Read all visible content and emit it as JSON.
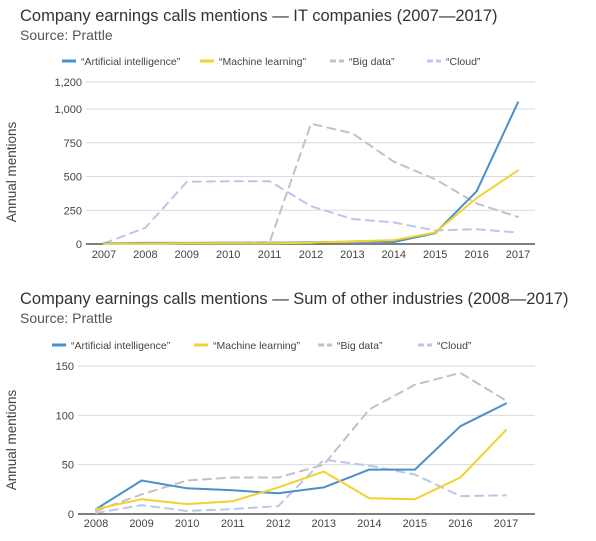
{
  "series_style": {
    "ai": {
      "color": "#4a90c9",
      "dash": "solid"
    },
    "ml": {
      "color": "#f2d22e",
      "dash": "solid"
    },
    "bigdata": {
      "color": "#c4bfc8",
      "dash": "dashed"
    },
    "cloud": {
      "color": "#bcc6e8",
      "dash": "dashed"
    }
  },
  "chart_data": [
    {
      "type": "line",
      "title": "Company earnings calls mentions — IT companies (2007—2017)",
      "source": "Source: Prattle",
      "ylabel": "Annual mentions",
      "xlabel": "",
      "x": [
        "2007",
        "2008",
        "2009",
        "2010",
        "2011",
        "2012",
        "2013",
        "2014",
        "2015",
        "2016",
        "2017"
      ],
      "ylim": [
        0,
        1200
      ],
      "yticks": [
        {
          "value": 0,
          "label": "0"
        },
        {
          "value": 250,
          "label": "250"
        },
        {
          "value": 500,
          "label": "500"
        },
        {
          "value": 750,
          "label": "750"
        },
        {
          "value": 1000,
          "label": "1,000"
        },
        {
          "value": 1200,
          "label": "1,200"
        }
      ],
      "grid": true,
      "legend": "top",
      "series": [
        {
          "key": "ai",
          "name": "“Artificial intelligence”",
          "values": [
            5,
            8,
            8,
            10,
            10,
            12,
            18,
            15,
            80,
            390,
            1050
          ]
        },
        {
          "key": "ml",
          "name": "“Machine learning”",
          "values": [
            2,
            3,
            5,
            5,
            5,
            8,
            20,
            28,
            85,
            340,
            545
          ]
        },
        {
          "key": "bigdata",
          "name": "“Big data”",
          "values": [
            3,
            5,
            8,
            10,
            12,
            890,
            820,
            610,
            480,
            300,
            200
          ]
        },
        {
          "key": "cloud",
          "name": "“Cloud”",
          "values": [
            5,
            120,
            460,
            465,
            465,
            280,
            185,
            160,
            100,
            110,
            85
          ]
        }
      ]
    },
    {
      "type": "line",
      "title": "Company earnings calls mentions — Sum of other industries (2008—2017)",
      "source": "Source: Prattle",
      "ylabel": "Annual mentions",
      "xlabel": "",
      "x": [
        "2008",
        "2009",
        "2010",
        "2011",
        "2012",
        "2013",
        "2014",
        "2015",
        "2016",
        "2017"
      ],
      "ylim": [
        0,
        150
      ],
      "yticks": [
        {
          "value": 0,
          "label": "0"
        },
        {
          "value": 50,
          "label": "50"
        },
        {
          "value": 100,
          "label": "100"
        },
        {
          "value": 150,
          "label": "150"
        }
      ],
      "grid": true,
      "legend": "top",
      "series": [
        {
          "key": "ai",
          "name": "“Artificial intelligence”",
          "values": [
            5,
            34,
            26,
            24,
            21,
            27,
            45,
            45,
            89,
            112
          ]
        },
        {
          "key": "ml",
          "name": "“Machine learning”",
          "values": [
            5,
            15,
            10,
            13,
            27,
            43,
            16,
            15,
            37,
            85
          ]
        },
        {
          "key": "bigdata",
          "name": "“Big data”",
          "values": [
            3,
            20,
            34,
            37,
            37,
            50,
            106,
            131,
            143,
            115
          ]
        },
        {
          "key": "cloud",
          "name": "“Cloud”",
          "values": [
            1,
            9,
            3,
            5,
            8,
            55,
            49,
            40,
            18,
            19
          ]
        }
      ]
    }
  ]
}
